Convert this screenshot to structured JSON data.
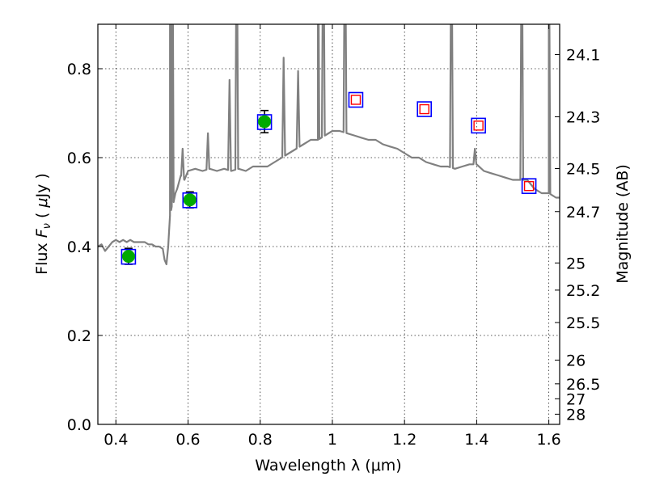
{
  "chart_data": {
    "type": "scatter",
    "xlabel": "Wavelength  λ (μm)",
    "ylabel": "Flux  F_ν  ( μJy )",
    "ylabel_right": "Magnitude (AB)",
    "xlim": [
      0.35,
      1.63
    ],
    "ylim": [
      0.0,
      0.9
    ],
    "grid": true,
    "x_ticks": [
      0.4,
      0.6,
      0.8,
      1.0,
      1.2,
      1.4,
      1.6
    ],
    "x_tick_labels": [
      "0.4",
      "0.6",
      "0.8",
      "1",
      "1.2",
      "1.4",
      "1.6"
    ],
    "y_ticks": [
      0.0,
      0.2,
      0.4,
      0.6,
      0.8
    ],
    "y_tick_labels": [
      "0.0",
      "0.2",
      "0.4",
      "0.6",
      "0.8"
    ],
    "right_ticks": [
      24.1,
      24.3,
      24.5,
      24.7,
      25,
      25.2,
      25.5,
      26,
      26.5,
      27,
      28
    ],
    "right_tick_labels": [
      "24.1",
      "24.3",
      "24.5",
      "24.7",
      "25",
      "25.2",
      "25.5",
      "26",
      "26.5",
      "27",
      "28"
    ],
    "series": [
      {
        "kind": "template-spectrum",
        "color": "#808080",
        "x": [
          0.35,
          0.36,
          0.37,
          0.38,
          0.39,
          0.4,
          0.41,
          0.42,
          0.43,
          0.44,
          0.45,
          0.46,
          0.47,
          0.48,
          0.49,
          0.5,
          0.51,
          0.52,
          0.53,
          0.535,
          0.54,
          0.545,
          0.55,
          0.555,
          0.56,
          0.565,
          0.57,
          0.58,
          0.59,
          0.6,
          0.62,
          0.64,
          0.66,
          0.68,
          0.7,
          0.72,
          0.74,
          0.76,
          0.78,
          0.8,
          0.82,
          0.84,
          0.86,
          0.88,
          0.9,
          0.92,
          0.94,
          0.96,
          0.98,
          1.0,
          1.02,
          1.04,
          1.06,
          1.08,
          1.1,
          1.12,
          1.14,
          1.16,
          1.18,
          1.2,
          1.22,
          1.24,
          1.26,
          1.28,
          1.3,
          1.32,
          1.34,
          1.36,
          1.38,
          1.4,
          1.42,
          1.44,
          1.46,
          1.48,
          1.5,
          1.52,
          1.54,
          1.56,
          1.58,
          1.6,
          1.62,
          1.63
        ],
        "y": [
          0.4,
          0.405,
          0.39,
          0.4,
          0.41,
          0.415,
          0.41,
          0.415,
          0.41,
          0.415,
          0.41,
          0.41,
          0.41,
          0.41,
          0.405,
          0.405,
          0.4,
          0.4,
          0.395,
          0.37,
          0.36,
          0.4,
          0.47,
          0.49,
          0.5,
          0.52,
          0.53,
          0.56,
          0.55,
          0.57,
          0.575,
          0.57,
          0.575,
          0.57,
          0.575,
          0.57,
          0.575,
          0.57,
          0.58,
          0.58,
          0.58,
          0.59,
          0.6,
          0.61,
          0.62,
          0.63,
          0.64,
          0.64,
          0.65,
          0.66,
          0.66,
          0.655,
          0.65,
          0.645,
          0.64,
          0.64,
          0.63,
          0.625,
          0.62,
          0.61,
          0.6,
          0.6,
          0.59,
          0.585,
          0.58,
          0.58,
          0.575,
          0.58,
          0.585,
          0.585,
          0.57,
          0.565,
          0.56,
          0.555,
          0.55,
          0.55,
          0.55,
          0.53,
          0.52,
          0.52,
          0.51,
          0.51
        ]
      },
      {
        "kind": "photometry",
        "marker": "circle",
        "color": "#00aa00",
        "x": [
          0.435,
          0.605,
          0.812
        ],
        "y": [
          0.378,
          0.505,
          0.681
        ],
        "yerr": [
          0.018,
          0.018,
          0.025
        ]
      },
      {
        "kind": "model-broadband",
        "marker": "square",
        "color": "#0000ff",
        "x": [
          0.435,
          0.605,
          0.812,
          1.065,
          1.255,
          1.405,
          1.545
        ],
        "y": [
          0.377,
          0.504,
          0.68,
          0.73,
          0.709,
          0.672,
          0.536
        ]
      },
      {
        "kind": "ir-photometry",
        "marker": "square-open",
        "color": "#ff0000",
        "x": [
          1.065,
          1.255,
          1.405,
          1.545
        ],
        "y": [
          0.73,
          0.709,
          0.672,
          0.536
        ]
      }
    ],
    "emission_lines": [
      {
        "x": 0.55,
        "peak": 0.9
      },
      {
        "x": 0.557,
        "peak": 0.9
      },
      {
        "x": 0.585,
        "peak": 0.62
      },
      {
        "x": 0.655,
        "peak": 0.655
      },
      {
        "x": 0.715,
        "peak": 0.775
      },
      {
        "x": 0.735,
        "peak": 0.9
      },
      {
        "x": 0.865,
        "peak": 0.825
      },
      {
        "x": 0.905,
        "peak": 0.795
      },
      {
        "x": 0.96,
        "peak": 0.9
      },
      {
        "x": 0.975,
        "peak": 0.9
      },
      {
        "x": 1.035,
        "peak": 0.9
      },
      {
        "x": 1.33,
        "peak": 0.9
      },
      {
        "x": 1.395,
        "peak": 0.62
      },
      {
        "x": 1.525,
        "peak": 0.9
      },
      {
        "x": 1.6,
        "peak": 0.9
      }
    ]
  }
}
